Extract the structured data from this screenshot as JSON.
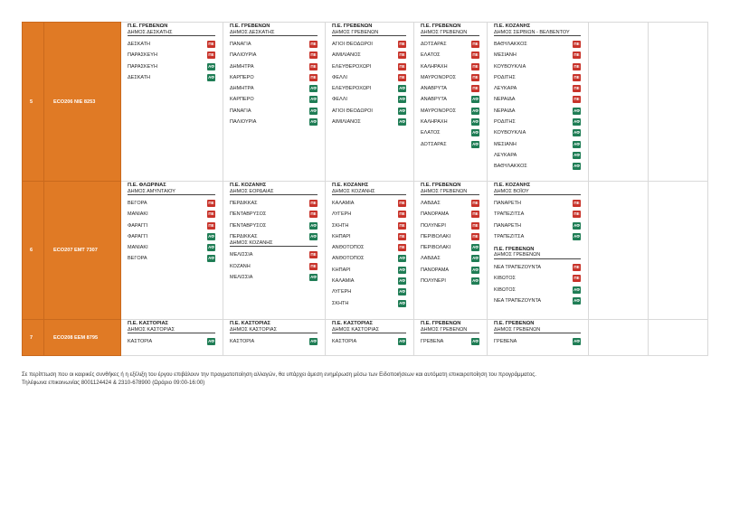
{
  "rows": [
    {
      "num": "5",
      "code": "ECO206  ΝΙΕ 8253",
      "cols": [
        {
          "groups": [
            {
              "pe": "Π.Ε. ΓΡΕΒΕΝΩΝ",
              "dimos": "ΔΗΜΟΣ ΔΕΣΚΑΤΗΣ",
              "items": [
                {
                  "n": "ΔΕΣΚΑΤΗ",
                  "b": "ΠΕ"
                },
                {
                  "n": "ΠΑΡΑΣΚΕΥΗ",
                  "b": "ΠΕ"
                },
                {
                  "n": "ΠΑΡΑΣΚΕΥΗ",
                  "b": "ΑΦ"
                },
                {
                  "n": "ΔΕΣΚΑΤΗ",
                  "b": "ΑΦ"
                }
              ]
            }
          ]
        },
        {
          "groups": [
            {
              "pe": "Π.Ε. ΓΡΕΒΕΝΩΝ",
              "dimos": "ΔΗΜΟΣ ΔΕΣΚΑΤΗΣ",
              "items": [
                {
                  "n": "ΠΑΝΑΓΙΑ",
                  "b": "ΠΕ"
                },
                {
                  "n": "ΠΑΛΙΟΥΡΙΑ",
                  "b": "ΠΕ"
                },
                {
                  "n": "ΔΗΜΗΤΡΑ",
                  "b": "ΠΕ"
                },
                {
                  "n": "ΚΑΡΠΕΡΟ",
                  "b": "ΠΕ"
                },
                {
                  "n": "ΔΗΜΗΤΡΑ",
                  "b": "ΑΦ"
                },
                {
                  "n": "ΚΑΡΠΕΡΟ",
                  "b": "ΑΦ"
                },
                {
                  "n": "ΠΑΝΑΓΙΑ",
                  "b": "ΑΦ"
                },
                {
                  "n": "ΠΑΛΙΟΥΡΙΑ",
                  "b": "ΑΦ"
                }
              ]
            }
          ]
        },
        {
          "groups": [
            {
              "pe": "Π.Ε. ΓΡΕΒΕΝΩΝ",
              "dimos": "ΔΗΜΟΣ ΓΡΕΒΕΝΩΝ",
              "items": [
                {
                  "n": "ΑΓΙΟΙ ΘΕΟΔΩΡΟΙ",
                  "b": "ΠΕ"
                },
                {
                  "n": "ΑΙΜΙΛΙΑΝΟΣ",
                  "b": "ΠΕ"
                },
                {
                  "n": "ΕΛΕΥΘΕΡΟΧΩΡΙ",
                  "b": "ΠΕ"
                },
                {
                  "n": "ΦΕΛΛΙ",
                  "b": "ΠΕ"
                },
                {
                  "n": "ΕΛΕΥΘΕΡΟΧΩΡΙ",
                  "b": "ΑΦ"
                },
                {
                  "n": "ΦΕΛΛΙ",
                  "b": "ΑΦ"
                },
                {
                  "n": "ΑΓΙΟΙ ΘΕΟΔΩΡΟΙ",
                  "b": "ΑΦ"
                },
                {
                  "n": "ΑΙΜΙΛΙΑΝΟΣ",
                  "b": "ΑΦ"
                }
              ]
            }
          ]
        },
        {
          "groups": [
            {
              "pe": "Π.Ε. ΓΡΕΒΕΝΩΝ",
              "dimos": "ΔΗΜΟΣ ΓΡΕΒΕΝΩΝ",
              "items": [
                {
                  "n": "ΔΟΤΣΑΡΑΣ",
                  "b": "ΠΕ"
                },
                {
                  "n": "ΕΛΑΤΟΣ",
                  "b": "ΠΕ"
                },
                {
                  "n": "ΚΑΛΗΡΑΧΗ",
                  "b": "ΠΕ"
                },
                {
                  "n": "ΜΑΥΡΟΝΟΡΟΣ",
                  "b": "ΠΕ"
                },
                {
                  "n": "ΑΝΑΒΡΥΤΑ",
                  "b": "ΠΕ"
                },
                {
                  "n": "ΑΝΑΒΡΥΤΑ",
                  "b": "ΑΦ"
                },
                {
                  "n": "ΜΑΥΡΟΝΟΡΟΣ",
                  "b": "ΑΦ"
                },
                {
                  "n": "ΚΑΛΗΡΑΧΗ",
                  "b": "ΑΦ"
                },
                {
                  "n": "ΕΛΑΤΟΣ",
                  "b": "ΑΦ"
                },
                {
                  "n": "ΔΟΤΣΑΡΑΣ",
                  "b": "ΑΦ"
                }
              ]
            }
          ]
        },
        {
          "groups": [
            {
              "pe": "Π.Ε. ΚΟΖΑΝΗΣ",
              "dimos": "ΔΗΜΟΣ ΣΕΡΒΙΩΝ - ΒΕΛΒΕΝΤΟΥ",
              "items": [
                {
                  "n": "ΒΑΘΥΛΑΚΚΟΣ",
                  "b": "ΠΕ"
                },
                {
                  "n": "ΜΕΣΙΑΝΗ",
                  "b": "ΠΕ"
                },
                {
                  "n": "ΚΟΥΒΟΥΚΛΙΑ",
                  "b": "ΠΕ"
                },
                {
                  "n": "ΡΟΔΙΤΗΣ",
                  "b": "ΠΕ"
                },
                {
                  "n": "ΛΕΥΚΑΡΑ",
                  "b": "ΠΕ"
                },
                {
                  "n": "ΝΕΡΑΙΔΑ",
                  "b": "ΠΕ"
                },
                {
                  "n": "ΝΕΡΑΙΔΑ",
                  "b": "ΑΦ"
                },
                {
                  "n": "ΡΟΔΙΤΗΣ",
                  "b": "ΑΦ"
                },
                {
                  "n": "ΚΟΥΒΟΥΚΛΙΑ",
                  "b": "ΑΦ"
                },
                {
                  "n": "ΜΕΣΙΑΝΗ",
                  "b": "ΑΦ"
                },
                {
                  "n": "ΛΕΥΚΑΡΑ",
                  "b": "ΑΦ"
                },
                {
                  "n": "ΒΑΘΥΛΑΚΚΟΣ",
                  "b": "ΑΦ"
                }
              ]
            }
          ]
        }
      ]
    },
    {
      "num": "6",
      "code": "ECO207  ΕΜΤ 7307",
      "cols": [
        {
          "groups": [
            {
              "pe": "Π.Ε. ΦΛΩΡΙΝΑΣ",
              "dimos": "ΔΗΜΟΣ ΑΜΥΝΤΑΙΟΥ",
              "items": [
                {
                  "n": "ΒΕΓΟΡΑ",
                  "b": "ΠΕ"
                },
                {
                  "n": "ΜΑΝΙΑΚΙ",
                  "b": "ΠΕ"
                },
                {
                  "n": "ΦΑΡΑΓΓΙ",
                  "b": "ΠΕ"
                },
                {
                  "n": "ΦΑΡΑΓΓΙ",
                  "b": "ΑΦ"
                },
                {
                  "n": "ΜΑΝΙΑΚΙ",
                  "b": "ΑΦ"
                },
                {
                  "n": "ΒΕΓΟΡΑ",
                  "b": "ΑΦ"
                }
              ]
            }
          ]
        },
        {
          "groups": [
            {
              "pe": "Π.Ε. ΚΟΖΑΝΗΣ",
              "dimos": "ΔΗΜΟΣ ΕΟΡΔΑΙΑΣ",
              "items": [
                {
                  "n": "ΠΕΡΔΙΚΚΑΣ",
                  "b": "ΠΕ"
                },
                {
                  "n": "ΠΕΝΤΑΒΡΥΣΟΣ",
                  "b": "ΠΕ"
                },
                {
                  "n": "ΠΕΝΤΑΒΡΥΣΟΣ",
                  "b": "ΑΦ"
                },
                {
                  "n": "ΠΕΡΔΙΚΚΑΣ",
                  "b": "ΑΦ"
                }
              ]
            },
            {
              "pe": "",
              "dimos": "ΔΗΜΟΣ ΚΟΖΑΝΗΣ",
              "items": [
                {
                  "n": "ΜΕΛΙΣΣΙΑ",
                  "b": "ΠΕ"
                },
                {
                  "n": "ΚΟΖΑΝΗ",
                  "b": "ΠΕ"
                },
                {
                  "n": "ΜΕΛΙΣΣΙΑ",
                  "b": "ΑΦ"
                }
              ]
            }
          ]
        },
        {
          "groups": [
            {
              "pe": "Π.Ε. ΚΟΖΑΝΗΣ",
              "dimos": "ΔΗΜΟΣ ΚΟΖΑΝΗΣ",
              "items": [
                {
                  "n": "ΚΑΛΑΜΙΑ",
                  "b": "ΠΕ"
                },
                {
                  "n": "ΛΥΓΕΡΗ",
                  "b": "ΠΕ"
                },
                {
                  "n": "ΣΚΗΤΗ",
                  "b": "ΠΕ"
                },
                {
                  "n": "ΚΗΠΑΡΙ",
                  "b": "ΠΕ"
                },
                {
                  "n": "ΑΝΘΟΤΟΠΟΣ",
                  "b": "ΠΕ"
                },
                {
                  "n": "ΑΝΘΟΤΟΠΟΣ",
                  "b": "ΑΦ"
                },
                {
                  "n": "ΚΗΠΑΡΙ",
                  "b": "ΑΦ"
                },
                {
                  "n": "ΚΑΛΑΜΙΑ",
                  "b": "ΑΦ"
                },
                {
                  "n": "ΛΥΓΕΡΗ",
                  "b": "ΑΦ"
                },
                {
                  "n": "ΣΚΗΤΗ",
                  "b": "ΑΦ"
                }
              ]
            }
          ]
        },
        {
          "groups": [
            {
              "pe": "Π.Ε. ΓΡΕΒΕΝΩΝ",
              "dimos": "ΔΗΜΟΣ ΓΡΕΒΕΝΩΝ",
              "items": [
                {
                  "n": "ΛΑΒΔΑΣ",
                  "b": "ΠΕ"
                },
                {
                  "n": "ΠΑΝΟΡΑΜΑ",
                  "b": "ΠΕ"
                },
                {
                  "n": "ΠΟΛΥΝΕΡΙ",
                  "b": "ΠΕ"
                },
                {
                  "n": "ΠΕΡΙΒΟΛΑΚΙ",
                  "b": "ΠΕ"
                },
                {
                  "n": "ΠΕΡΙΒΟΛΑΚΙ",
                  "b": "ΑΦ"
                },
                {
                  "n": "ΛΑΒΔΑΣ",
                  "b": "ΑΦ"
                },
                {
                  "n": "ΠΑΝΟΡΑΜΑ",
                  "b": "ΑΦ"
                },
                {
                  "n": "ΠΟΛΥΝΕΡΙ",
                  "b": "ΑΦ"
                }
              ]
            }
          ]
        },
        {
          "groups": [
            {
              "pe": "Π.Ε. ΚΟΖΑΝΗΣ",
              "dimos": "ΔΗΜΟΣ ΒΟΪΟΥ",
              "items": [
                {
                  "n": "ΠΑΝΑΡΕΤΗ",
                  "b": "ΠΕ"
                },
                {
                  "n": "ΤΡΑΠΕΖΙΤΣΑ",
                  "b": "ΠΕ"
                },
                {
                  "n": "ΠΑΝΑΡΕΤΗ",
                  "b": "ΑΦ"
                },
                {
                  "n": "ΤΡΑΠΕΖΙΤΣΑ",
                  "b": "ΑΦ"
                }
              ]
            },
            {
              "pe": "Π.Ε. ΓΡΕΒΕΝΩΝ",
              "dimos": "ΔΗΜΟΣ ΓΡΕΒΕΝΩΝ",
              "items": [
                {
                  "n": "ΝΕΑ ΤΡΑΠΕΖΟΥΝΤΑ",
                  "b": "ΠΕ"
                },
                {
                  "n": "ΚΙΒΩΤΟΣ",
                  "b": "ΠΕ"
                },
                {
                  "n": "ΚΙΒΩΤΟΣ",
                  "b": "ΑΦ"
                },
                {
                  "n": "ΝΕΑ ΤΡΑΠΕΖΟΥΝΤΑ",
                  "b": "ΑΦ"
                }
              ]
            }
          ]
        }
      ]
    },
    {
      "num": "7",
      "code": "ECO208  ΕΕΜ 8795",
      "cols": [
        {
          "groups": [
            {
              "pe": "Π.Ε. ΚΑΣΤΟΡΙΑΣ",
              "dimos": "ΔΗΜΟΣ ΚΑΣΤΟΡΙΑΣ",
              "items": [
                {
                  "n": "ΚΑΣΤΟΡΙΑ",
                  "b": "ΑΦ"
                }
              ]
            }
          ]
        },
        {
          "groups": [
            {
              "pe": "Π.Ε. ΚΑΣΤΟΡΙΑΣ",
              "dimos": "ΔΗΜΟΣ ΚΑΣΤΟΡΙΑΣ",
              "items": [
                {
                  "n": "ΚΑΣΤΟΡΙΑ",
                  "b": "ΑΦ"
                }
              ]
            }
          ]
        },
        {
          "groups": [
            {
              "pe": "Π.Ε. ΚΑΣΤΟΡΙΑΣ",
              "dimos": "ΔΗΜΟΣ ΚΑΣΤΟΡΙΑΣ",
              "items": [
                {
                  "n": "ΚΑΣΤΟΡΙΑ",
                  "b": "ΑΦ"
                }
              ]
            }
          ]
        },
        {
          "groups": [
            {
              "pe": "Π.Ε. ΓΡΕΒΕΝΩΝ",
              "dimos": "ΔΗΜΟΣ ΓΡΕΒΕΝΩΝ",
              "items": [
                {
                  "n": "ΓΡΕΒΕΝΑ",
                  "b": "ΑΦ"
                }
              ]
            }
          ]
        },
        {
          "groups": [
            {
              "pe": "Π.Ε. ΓΡΕΒΕΝΩΝ",
              "dimos": "ΔΗΜΟΣ ΓΡΕΒΕΝΩΝ",
              "items": [
                {
                  "n": "ΓΡΕΒΕΝΑ",
                  "b": "ΑΦ"
                }
              ]
            }
          ]
        }
      ]
    }
  ],
  "colors": {
    "orange": "#e07a25",
    "badge_pe": "#c8332a",
    "badge_af": "#1f7d55"
  },
  "footer": {
    "line1": "Σε περίπτωση που οι καιρικές συνθήκες ή η εξέλιξη του έργου επιβάλουν την πραγματοποίηση αλλαγών, θα υπάρχει άμεση ενημέρωση μέσω των Ειδοποιήσεων και αυτόματη επικαιροποίηση του προγράμματος.",
    "line2": "Τηλέφωνα επικοινωνίας 8001124424 & 2310-678900 (Ωράριο 09:00-16:00)"
  }
}
